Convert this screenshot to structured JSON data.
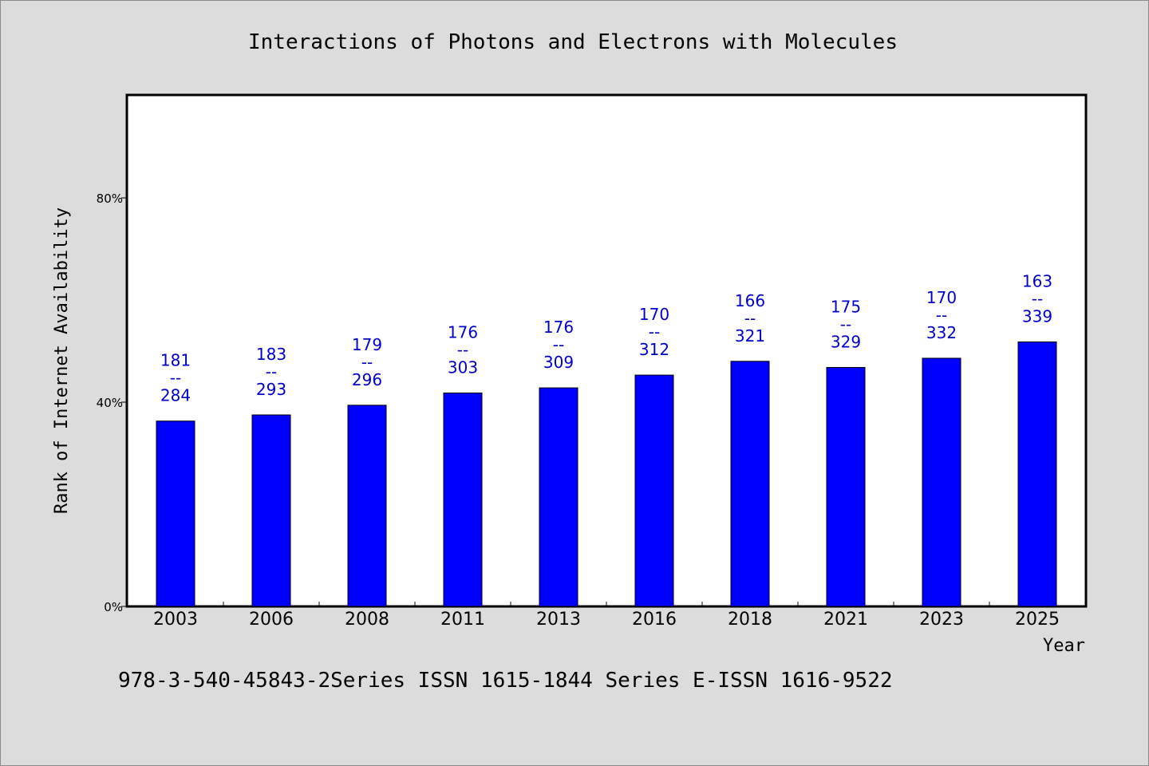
{
  "chart_data": {
    "type": "bar",
    "title": "Interactions of Photons and Electrons with Molecules",
    "xlabel": "Year",
    "ylabel": "Rank of Internet Availability",
    "categories": [
      "2003",
      "2006",
      "2008",
      "2011",
      "2013",
      "2016",
      "2018",
      "2021",
      "2023",
      "2025"
    ],
    "values": [
      36.3,
      37.5,
      39.4,
      41.8,
      42.8,
      45.3,
      48.0,
      46.8,
      48.6,
      51.8
    ],
    "data_labels": [
      {
        "top": "181",
        "sep": "--",
        "bottom": "284"
      },
      {
        "top": "183",
        "sep": "--",
        "bottom": "293"
      },
      {
        "top": "179",
        "sep": "--",
        "bottom": "296"
      },
      {
        "top": "176",
        "sep": "--",
        "bottom": "303"
      },
      {
        "top": "176",
        "sep": "--",
        "bottom": "309"
      },
      {
        "top": "170",
        "sep": "--",
        "bottom": "312"
      },
      {
        "top": "166",
        "sep": "--",
        "bottom": "321"
      },
      {
        "top": "175",
        "sep": "--",
        "bottom": "329"
      },
      {
        "top": "170",
        "sep": "--",
        "bottom": "332"
      },
      {
        "top": "163",
        "sep": "--",
        "bottom": "339"
      }
    ],
    "yticks": [
      {
        "value": 0,
        "label": "0%"
      },
      {
        "value": 40,
        "label": "40%"
      },
      {
        "value": 80,
        "label": "80%"
      }
    ],
    "ylim": [
      0,
      100
    ],
    "grid": false,
    "bar_color": "#0000ff",
    "label_color": "#0000cc",
    "footnote": "978-3-540-45843-2Series ISSN 1615-1844 Series E-ISSN 1616-9522"
  }
}
